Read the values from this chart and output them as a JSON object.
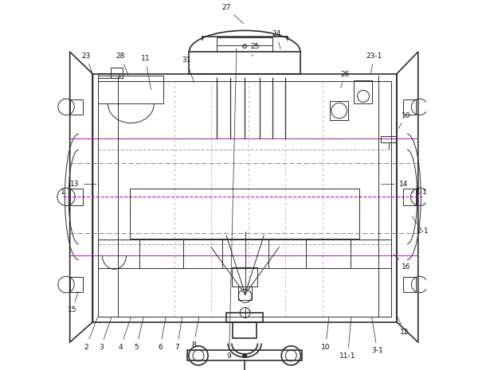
{
  "bg_color": "#ffffff",
  "line_color": "#2d2d2d",
  "magenta_color": "#cc00cc",
  "dash_color": "#666666",
  "figsize": [
    6.05,
    4.65
  ],
  "dpi": 100
}
